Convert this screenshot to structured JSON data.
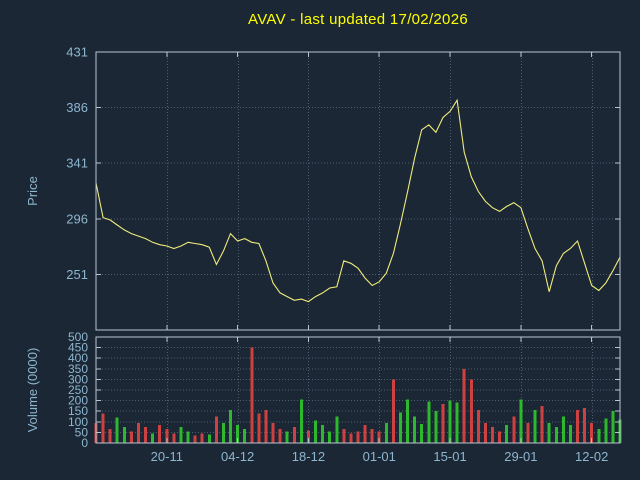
{
  "title": "AVAV - last updated 17/02/2026",
  "price_axis_label": "Price",
  "volume_axis_label": "Volume (0000)",
  "colors": {
    "background": "#1b2734",
    "title": "#ffff00",
    "axis_text": "#8db6cf",
    "border": "#b8c4ce",
    "grid": "#4d5f6e",
    "price_line": "#efec7b",
    "volume_up": "#2eb82e",
    "volume_down": "#cf4040"
  },
  "chart_data": [
    {
      "type": "line",
      "name": "price",
      "title": "AVAV - last updated 17/02/2026",
      "ylabel": "Price",
      "ylim": [
        206,
        431
      ],
      "yticks": [
        251,
        296,
        341,
        386,
        431
      ],
      "grid": true,
      "legend": "none",
      "x_tick_labels": [
        "20-11",
        "04-12",
        "18-12",
        "01-01",
        "15-01",
        "29-01",
        "12-02"
      ],
      "x_tick_indices": [
        10,
        20,
        30,
        40,
        50,
        60,
        70
      ],
      "values": [
        325,
        297,
        295,
        291,
        287,
        284,
        282,
        280,
        277,
        275,
        274,
        272,
        274,
        277,
        276,
        275,
        273,
        259,
        270,
        284,
        278,
        280,
        277,
        276,
        262,
        244,
        236,
        233,
        230,
        231,
        229,
        233,
        236,
        240,
        241,
        262,
        260,
        256,
        248,
        242,
        245,
        252,
        268,
        292,
        318,
        345,
        368,
        372,
        366,
        378,
        383,
        392,
        350,
        330,
        318,
        310,
        305,
        302,
        306,
        309,
        305,
        288,
        272,
        262,
        237,
        258,
        268,
        272,
        278,
        260,
        242,
        238,
        244,
        254,
        265
      ]
    },
    {
      "type": "bar",
      "name": "volume",
      "ylabel": "Volume (0000)",
      "ylim": [
        0,
        500
      ],
      "yticks": [
        0,
        50,
        100,
        150,
        200,
        250,
        300,
        350,
        400,
        450,
        500
      ],
      "grid": true,
      "x_tick_labels": [
        "20-11",
        "04-12",
        "18-12",
        "01-01",
        "15-01",
        "29-01",
        "12-02"
      ],
      "x_tick_indices": [
        10,
        20,
        30,
        40,
        50,
        60,
        70
      ],
      "values": [
        95,
        140,
        65,
        120,
        75,
        55,
        95,
        75,
        45,
        85,
        65,
        45,
        75,
        55,
        35,
        45,
        40,
        125,
        95,
        155,
        85,
        65,
        450,
        140,
        155,
        95,
        65,
        55,
        75,
        205,
        60,
        105,
        85,
        55,
        125,
        65,
        45,
        55,
        85,
        65,
        55,
        95,
        300,
        145,
        205,
        125,
        90,
        195,
        150,
        185,
        200,
        190,
        350,
        300,
        155,
        95,
        75,
        55,
        85,
        125,
        205,
        95,
        155,
        175,
        95,
        75,
        125,
        85,
        155,
        165,
        95,
        65,
        115,
        150,
        110
      ],
      "bar_directions": [
        "d",
        "d",
        "d",
        "u",
        "u",
        "d",
        "d",
        "d",
        "u",
        "d",
        "d",
        "d",
        "u",
        "u",
        "d",
        "d",
        "u",
        "d",
        "u",
        "u",
        "u",
        "u",
        "d",
        "d",
        "d",
        "d",
        "d",
        "u",
        "d",
        "u",
        "d",
        "u",
        "u",
        "u",
        "u",
        "d",
        "d",
        "d",
        "d",
        "d",
        "d",
        "u",
        "d",
        "u",
        "u",
        "u",
        "u",
        "u",
        "u",
        "d",
        "u",
        "u",
        "d",
        "d",
        "d",
        "d",
        "d",
        "d",
        "u",
        "d",
        "u",
        "d",
        "u",
        "d",
        "u",
        "u",
        "u",
        "u",
        "d",
        "d",
        "d",
        "u",
        "u",
        "u",
        "u"
      ]
    }
  ]
}
